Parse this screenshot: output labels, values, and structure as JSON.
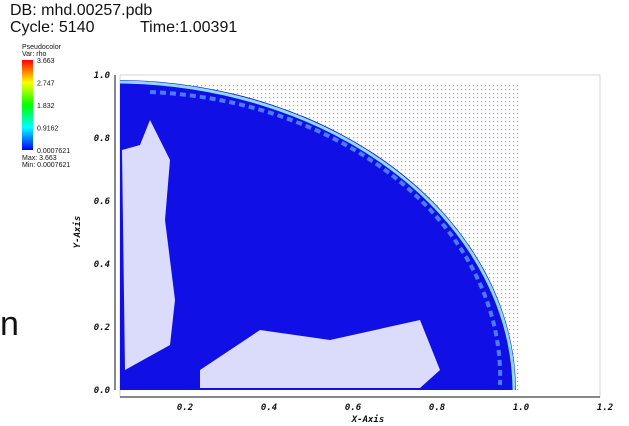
{
  "header": {
    "database": "DB: mhd.00257.pdb",
    "cycle": "Cycle: 5140",
    "time": "Time:1.00391"
  },
  "legend": {
    "plot": "Pseudocolor",
    "variable": "Var: rho",
    "labels": [
      "3.663",
      "2.747",
      "1.832",
      "0.9162",
      "0.0007621"
    ],
    "max": "Max: 3.663",
    "min": "Min: 0.0007621"
  },
  "axes": {
    "x_title": "X-Axis",
    "y_title": "Y-Axis",
    "x_labels": [
      "0.2",
      "0.4",
      "0.6",
      "0.8",
      "1.0",
      "1.2"
    ],
    "y_labels": [
      "0.0",
      "0.2",
      "0.4",
      "0.6",
      "0.8",
      "1.0"
    ]
  },
  "side_text": "n"
}
